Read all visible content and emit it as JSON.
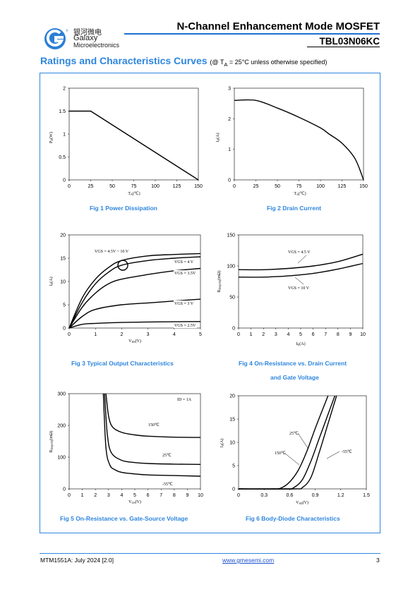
{
  "header": {
    "logo_cn": "银河微电",
    "logo_en1": "Galaxy",
    "logo_en2": "Microelectronics",
    "doc_title": "N-Channel Enhancement Mode MOSFET",
    "part_number": "TBL03N06KC"
  },
  "section": {
    "title": "Ratings and Characteristics Curves",
    "cond_pre": "(@ T",
    "cond_sub": "A",
    "cond_post": " = 25°C unless otherwise specified)"
  },
  "fig1": {
    "caption": "Fig 1    Power Dissipation",
    "ylabel": "PD(W)",
    "xlabel": "TA(℃)",
    "xticks": [
      "0",
      "25",
      "50",
      "75",
      "100",
      "125",
      "150"
    ],
    "yticks": [
      "0",
      "0.5",
      "1",
      "1.5",
      "2"
    ]
  },
  "fig2": {
    "caption": "Fig 2    Drain Current",
    "ylabel": "ID(A)",
    "xlabel": "TA(℃)",
    "xticks": [
      "0",
      "25",
      "50",
      "75",
      "100",
      "125",
      "150"
    ],
    "yticks": [
      "0",
      "1",
      "2",
      "3"
    ]
  },
  "fig3": {
    "caption": "Fig 3    Typical Output Characteristics",
    "ylabel": "ID(A)",
    "xlabel": "VDS(V)",
    "xticks": [
      "0",
      "1",
      "2",
      "3",
      "4",
      "5"
    ],
    "yticks": [
      "0",
      "5",
      "10",
      "15",
      "20"
    ],
    "labels": [
      "VGS = 4.5V ~ 10 V",
      "VGS = 4 V",
      "VGS = 3.5V",
      "VGS = 3 V",
      "VGS = 2.5V"
    ]
  },
  "fig4": {
    "caption": "Fig 4    On-Resistance vs. Drain Current",
    "caption2": "and Gate Voltage",
    "ylabel": "RDS(ON)(mΩ)",
    "xlabel": "ID(A)",
    "xticks": [
      "0",
      "1",
      "2",
      "3",
      "4",
      "5",
      "6",
      "7",
      "8",
      "9",
      "10"
    ],
    "yticks": [
      "0",
      "50",
      "100",
      "150"
    ],
    "labels": [
      "VGS = 4.5 V",
      "VGS = 10 V"
    ]
  },
  "fig5": {
    "caption": "Fig 5    On-Resistance vs. Gate-Source Voltage",
    "ylabel": "RDS(ON)(mΩ)",
    "xlabel": "VGS(V)",
    "xticks": [
      "0",
      "1",
      "2",
      "3",
      "4",
      "5",
      "6",
      "7",
      "8",
      "9",
      "10"
    ],
    "yticks": [
      "0",
      "100",
      "200",
      "300"
    ],
    "labels": [
      "ID = 1A",
      "150℃",
      "25℃",
      "-55℃"
    ]
  },
  "fig6": {
    "caption": "Fig 6    Body-Diode Characteristics",
    "ylabel": "IS(A)",
    "xlabel": "VSD(V)",
    "xticks": [
      "0",
      "0.3",
      "0.6",
      "0.9",
      "1.2",
      "1.5"
    ],
    "yticks": [
      "0",
      "5",
      "10",
      "15",
      "20"
    ],
    "labels": [
      "25℃",
      "150℃",
      "-55℃"
    ]
  },
  "chart_data": [
    {
      "type": "line",
      "caption": "Fig 1 Power Dissipation",
      "xlabel": "TA(℃)",
      "ylabel": "PD(W)",
      "xlim": [
        0,
        150
      ],
      "ylim": [
        0,
        2
      ],
      "series": [
        {
          "x": [
            0,
            25,
            150
          ],
          "y": [
            1.5,
            1.5,
            0
          ]
        }
      ]
    },
    {
      "type": "line",
      "caption": "Fig 2 Drain Current",
      "xlabel": "TA(℃)",
      "ylabel": "ID(A)",
      "xlim": [
        0,
        150
      ],
      "ylim": [
        0,
        3
      ],
      "series": [
        {
          "x": [
            0,
            25,
            50,
            75,
            100,
            110,
            125,
            140,
            150
          ],
          "y": [
            2.6,
            2.6,
            2.35,
            2.05,
            1.7,
            1.5,
            1.2,
            0.7,
            0
          ]
        }
      ]
    },
    {
      "type": "line",
      "caption": "Fig 3 Typical Output Characteristics",
      "xlabel": "VDS(V)",
      "ylabel": "ID(A)",
      "xlim": [
        0,
        5
      ],
      "ylim": [
        0,
        20
      ],
      "series": [
        {
          "name": "VGS = 4.5V ~ 10 V",
          "x": [
            0,
            0.5,
            1,
            1.5,
            2,
            3,
            4,
            5
          ],
          "y": [
            0,
            6.5,
            10.5,
            13,
            14.5,
            15.5,
            15.8,
            16
          ]
        },
        {
          "name": "VGS = 4 V",
          "x": [
            0,
            0.5,
            1,
            1.5,
            2,
            3,
            4,
            5
          ],
          "y": [
            0,
            5.5,
            9.5,
            12,
            13.5,
            14.5,
            15,
            15.3
          ]
        },
        {
          "name": "VGS = 3.5V",
          "x": [
            0,
            0.5,
            1,
            1.5,
            2,
            3,
            4,
            5
          ],
          "y": [
            0,
            4.5,
            7.5,
            9.5,
            10.5,
            11.5,
            12.3,
            12.8
          ]
        },
        {
          "name": "VGS = 3 V",
          "x": [
            0,
            0.5,
            1,
            2,
            3,
            4,
            5
          ],
          "y": [
            0,
            2.5,
            4,
            5,
            5.4,
            5.8,
            6.2
          ]
        },
        {
          "name": "VGS = 2.5V",
          "x": [
            0,
            0.5,
            1,
            2,
            3,
            4,
            5
          ],
          "y": [
            0,
            0.8,
            1,
            1.2,
            1.3,
            1.35,
            1.4
          ]
        }
      ]
    },
    {
      "type": "line",
      "caption": "Fig 4 On-Resistance vs. Drain Current and Gate Voltage",
      "xlabel": "ID(A)",
      "ylabel": "RDS(ON)(mΩ)",
      "xlim": [
        0,
        10
      ],
      "ylim": [
        0,
        150
      ],
      "series": [
        {
          "name": "VGS = 4.5 V",
          "x": [
            0,
            2,
            4,
            6,
            8,
            10
          ],
          "y": [
            94,
            94,
            96,
            100,
            107,
            119
          ]
        },
        {
          "name": "VGS = 10 V",
          "x": [
            0,
            2,
            4,
            6,
            8,
            10
          ],
          "y": [
            82,
            82,
            84,
            88,
            95,
            104
          ]
        }
      ]
    },
    {
      "type": "line",
      "caption": "Fig 5 On-Resistance vs. Gate-Source Voltage",
      "xlabel": "VGS(V)",
      "ylabel": "RDS(ON)(mΩ)",
      "xlim": [
        0,
        10
      ],
      "ylim": [
        0,
        300
      ],
      "series": [
        {
          "name": "150℃",
          "x": [
            2.8,
            3,
            3.3,
            4,
            5,
            6,
            8,
            10
          ],
          "y": [
            300,
            230,
            195,
            178,
            170,
            166,
            163,
            162
          ]
        },
        {
          "name": "25℃",
          "x": [
            2.7,
            2.9,
            3.2,
            4,
            5,
            6,
            8,
            10
          ],
          "y": [
            300,
            175,
            115,
            90,
            83,
            80,
            78,
            77
          ]
        },
        {
          "name": "-55℃",
          "x": [
            2.6,
            2.8,
            3.1,
            3.5,
            4,
            5,
            6,
            8,
            10
          ],
          "y": [
            300,
            130,
            75,
            60,
            52,
            47,
            44,
            42,
            40
          ]
        }
      ]
    },
    {
      "type": "line",
      "caption": "Fig 6 Body-Diode Characteristics",
      "xlabel": "VSD(V)",
      "ylabel": "IS(A)",
      "xlim": [
        0,
        1.5
      ],
      "ylim": [
        0,
        20
      ],
      "series": [
        {
          "name": "150℃",
          "x": [
            0,
            0.4,
            0.5,
            0.6,
            0.7,
            0.8,
            0.9,
            1.05
          ],
          "y": [
            0,
            0,
            0.2,
            1.5,
            4,
            8,
            13,
            20
          ]
        },
        {
          "name": "25℃",
          "x": [
            0,
            0.55,
            0.65,
            0.75,
            0.85,
            0.95,
            1.05,
            1.13
          ],
          "y": [
            0,
            0,
            0.3,
            2,
            6,
            11,
            16,
            20
          ]
        },
        {
          "name": "-55℃",
          "x": [
            0,
            0.65,
            0.75,
            0.85,
            0.95,
            1.05,
            1.15
          ],
          "y": [
            0,
            0,
            0.3,
            2.5,
            8,
            14,
            20
          ]
        }
      ]
    }
  ],
  "footer": {
    "doc_id": "MTM1551A: July 2024 [2.0]",
    "url": "www.gmesemi.com",
    "page": "3"
  }
}
